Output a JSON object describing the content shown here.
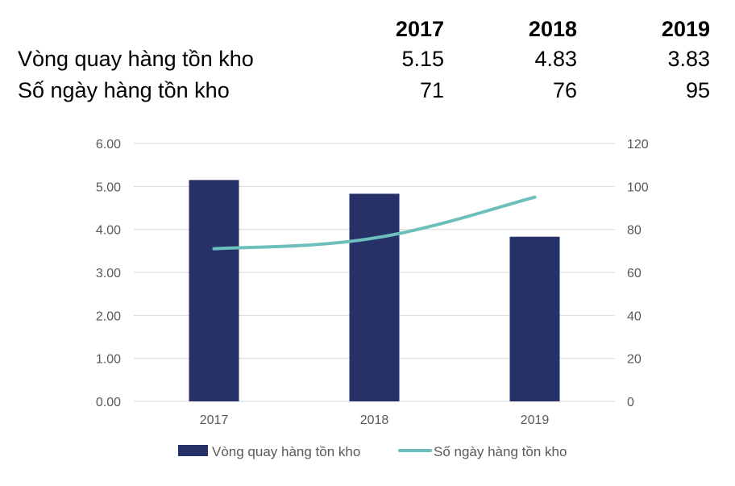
{
  "table": {
    "years": [
      "2017",
      "2018",
      "2019"
    ],
    "rows": [
      {
        "label": "Vòng quay hàng tồn kho",
        "values": [
          "5.15",
          "4.83",
          "3.83"
        ]
      },
      {
        "label": "Số ngày hàng tồn kho",
        "values": [
          "71",
          "76",
          "95"
        ]
      }
    ]
  },
  "chart_data": {
    "type": "bar",
    "categories": [
      "2017",
      "2018",
      "2019"
    ],
    "series": [
      {
        "name": "Vòng quay hàng tồn kho",
        "type": "bar",
        "axis": "left",
        "values": [
          5.15,
          4.83,
          3.83
        ],
        "color": "#263069"
      },
      {
        "name": "Số ngày hàng tồn kho",
        "type": "line",
        "axis": "right",
        "values": [
          71,
          76,
          95
        ],
        "color": "#6cbfbb"
      }
    ],
    "y_left": {
      "min": 0,
      "max": 6,
      "ticks": [
        "0.00",
        "1.00",
        "2.00",
        "3.00",
        "4.00",
        "5.00",
        "6.00"
      ]
    },
    "y_right": {
      "min": 0,
      "max": 120,
      "ticks": [
        "0",
        "20",
        "40",
        "60",
        "80",
        "100",
        "120"
      ]
    },
    "grid": true,
    "legend_position": "bottom",
    "colors": {
      "bar": "#263069",
      "line": "#6cbfbb",
      "grid": "#d9d9d9",
      "text": "#595959"
    }
  }
}
